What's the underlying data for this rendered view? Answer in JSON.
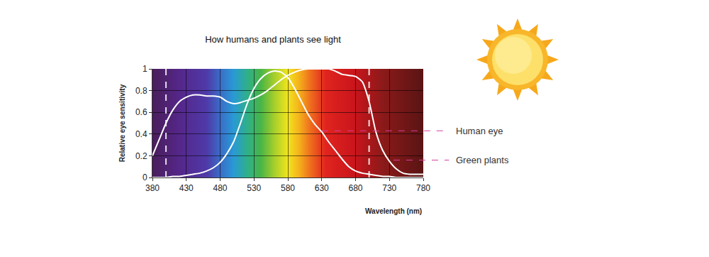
{
  "chart_data": {
    "type": "line",
    "title": "How humans and plants see light",
    "x_label": "Wavelength (nm)",
    "y_label": "Relative eye sensitivity",
    "x": [
      380,
      390,
      400,
      410,
      420,
      430,
      440,
      450,
      460,
      470,
      480,
      490,
      500,
      510,
      520,
      530,
      540,
      550,
      560,
      570,
      580,
      590,
      600,
      610,
      620,
      630,
      640,
      650,
      660,
      670,
      680,
      690,
      700,
      710,
      720,
      730,
      740,
      750,
      760,
      770,
      780
    ],
    "series": [
      {
        "name": "Human eye",
        "color": "#ffffff",
        "values": [
          0.0,
          0.0,
          0.0,
          0.01,
          0.01,
          0.02,
          0.03,
          0.04,
          0.06,
          0.09,
          0.14,
          0.22,
          0.33,
          0.5,
          0.68,
          0.82,
          0.91,
          0.96,
          0.98,
          0.97,
          0.92,
          0.82,
          0.7,
          0.58,
          0.49,
          0.42,
          0.33,
          0.25,
          0.17,
          0.1,
          0.06,
          0.04,
          0.03,
          0.02,
          0.01,
          0.01,
          0.0,
          0.0,
          0.0,
          0.0,
          0.0
        ]
      },
      {
        "name": "Green plants",
        "color": "#ffffff",
        "values": [
          0.2,
          0.35,
          0.5,
          0.62,
          0.7,
          0.74,
          0.76,
          0.76,
          0.75,
          0.75,
          0.74,
          0.7,
          0.68,
          0.69,
          0.71,
          0.73,
          0.76,
          0.8,
          0.85,
          0.9,
          0.94,
          0.97,
          0.99,
          1.0,
          1.0,
          1.0,
          1.0,
          0.98,
          0.95,
          0.94,
          0.93,
          0.88,
          0.7,
          0.42,
          0.25,
          0.15,
          0.08,
          0.04,
          0.03,
          0.03,
          0.03
        ]
      }
    ],
    "annotations": [
      {
        "text": "Human eye",
        "x": 630,
        "y": 0.43
      },
      {
        "text": "Green plants",
        "x": 736,
        "y": 0.16
      }
    ],
    "vlines": [
      400,
      700
    ],
    "xlim": [
      380,
      780
    ],
    "xticks": [
      380,
      430,
      480,
      530,
      580,
      630,
      680,
      730,
      780
    ],
    "ylim": [
      0,
      1
    ],
    "yticks": [
      0,
      0.2,
      0.4,
      0.6,
      0.8,
      1
    ],
    "grid": true
  }
}
